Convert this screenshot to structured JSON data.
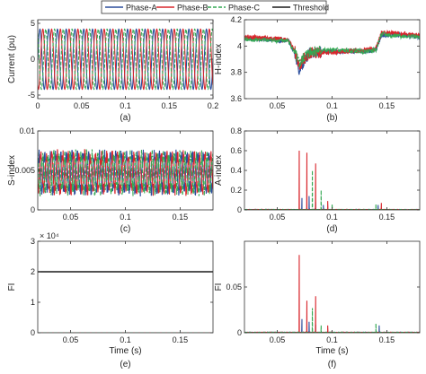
{
  "legend": {
    "entries": [
      {
        "name": "Phase-A",
        "color": "#2b4d9c",
        "dash": false
      },
      {
        "name": "Phase-B",
        "color": "#d9262c",
        "dash": false
      },
      {
        "name": "Phase-C",
        "color": "#34a853",
        "dash": true
      },
      {
        "name": "Threshold",
        "color": "#1a1a1a",
        "dash": false
      }
    ],
    "placement": "top-center"
  },
  "chart_data": [
    {
      "id": "a",
      "type": "line",
      "caption": "(a)",
      "xlabel": "",
      "ylabel": "Current (pu)",
      "xlim": [
        0,
        0.2
      ],
      "ylim": [
        -5.5,
        5.5
      ],
      "xticks": [
        0,
        0.05,
        0.1,
        0.15,
        0.2
      ],
      "xtick_labels": [
        "0",
        "0.05",
        "0.1",
        "0.15",
        "0.2"
      ],
      "yticks": [
        -5,
        0,
        5
      ],
      "ytick_labels": [
        "-5",
        "0",
        "5"
      ],
      "grid": false,
      "exponent": "",
      "series": [
        {
          "phase": "Phase-A",
          "color": "#2b4d9c",
          "dash": false,
          "description": "three-phase sinusoid",
          "amplitude": 4.2,
          "frequency_hz": 100,
          "phase_deg": 0
        },
        {
          "phase": "Phase-B",
          "color": "#d9262c",
          "dash": false,
          "description": "three-phase sinusoid",
          "amplitude": 4.2,
          "frequency_hz": 100,
          "phase_deg": -120
        },
        {
          "phase": "Phase-C",
          "color": "#34a853",
          "dash": true,
          "description": "three-phase sinusoid",
          "amplitude": 4.2,
          "frequency_hz": 100,
          "phase_deg": 120
        }
      ]
    },
    {
      "id": "b",
      "type": "line",
      "caption": "(b)",
      "xlabel": "",
      "ylabel": "H-index",
      "xlim": [
        0.02,
        0.18
      ],
      "ylim": [
        3.6,
        4.2
      ],
      "xticks": [
        0.05,
        0.1,
        0.15
      ],
      "xtick_labels": [
        "0.05",
        "0.1",
        "0.15"
      ],
      "yticks": [
        3.6,
        3.8,
        4.0,
        4.2
      ],
      "ytick_labels": [
        "3.6",
        "3.8",
        "4",
        "4.2"
      ],
      "grid": false,
      "exponent": "",
      "series": [
        {
          "phase": "Phase-A",
          "color": "#2b4d9c",
          "dash": false,
          "x": [
            0.02,
            0.06,
            0.066,
            0.07,
            0.075,
            0.08,
            0.1,
            0.13,
            0.14,
            0.145,
            0.155,
            0.18
          ],
          "y": [
            4.06,
            4.04,
            3.95,
            3.82,
            3.9,
            3.95,
            3.96,
            3.96,
            3.97,
            4.08,
            4.09,
            4.07
          ]
        },
        {
          "phase": "Phase-B",
          "color": "#d9262c",
          "dash": false,
          "x": [
            0.02,
            0.06,
            0.066,
            0.07,
            0.075,
            0.08,
            0.1,
            0.13,
            0.14,
            0.145,
            0.155,
            0.18
          ],
          "y": [
            4.07,
            4.05,
            3.96,
            3.84,
            3.91,
            3.95,
            3.95,
            3.97,
            3.98,
            4.1,
            4.1,
            4.08
          ]
        },
        {
          "phase": "Phase-C",
          "color": "#34a853",
          "dash": true,
          "x": [
            0.02,
            0.06,
            0.066,
            0.07,
            0.075,
            0.08,
            0.1,
            0.13,
            0.14,
            0.145,
            0.155,
            0.18
          ],
          "y": [
            4.05,
            4.04,
            3.95,
            3.86,
            3.92,
            3.96,
            3.97,
            3.96,
            3.97,
            4.09,
            4.08,
            4.07
          ]
        }
      ]
    },
    {
      "id": "c",
      "type": "line",
      "caption": "(c)",
      "xlabel": "",
      "ylabel": "S-index",
      "xlim": [
        0.02,
        0.18
      ],
      "ylim": [
        0,
        0.01
      ],
      "xticks": [
        0.05,
        0.1,
        0.15
      ],
      "xtick_labels": [
        "0.05",
        "0.1",
        "0.15"
      ],
      "yticks": [
        0,
        0.005,
        0.01
      ],
      "ytick_labels": [
        "0",
        "0.005",
        "0.01"
      ],
      "grid": false,
      "exponent": "",
      "series": [
        {
          "phase": "Phase-A",
          "color": "#2b4d9c",
          "dash": false,
          "description": "oscillating index",
          "mean": 0.0047,
          "amplitude": 0.0022,
          "frequency_hz": 200,
          "phase_deg": 0
        },
        {
          "phase": "Phase-B",
          "color": "#d9262c",
          "dash": false,
          "description": "oscillating index",
          "mean": 0.0047,
          "amplitude": 0.0022,
          "frequency_hz": 200,
          "phase_deg": -120
        },
        {
          "phase": "Phase-C",
          "color": "#34a853",
          "dash": true,
          "description": "oscillating index",
          "mean": 0.0047,
          "amplitude": 0.0022,
          "frequency_hz": 200,
          "phase_deg": 120
        }
      ]
    },
    {
      "id": "d",
      "type": "line",
      "caption": "(d)",
      "xlabel": "",
      "ylabel": "A-index",
      "xlim": [
        0.02,
        0.18
      ],
      "ylim": [
        0,
        0.8
      ],
      "xticks": [
        0.05,
        0.1,
        0.15
      ],
      "xtick_labels": [
        "0.05",
        "0.1",
        "0.15"
      ],
      "yticks": [
        0,
        0.2,
        0.4,
        0.6,
        0.8
      ],
      "ytick_labels": [
        "0",
        "0.2",
        "0.4",
        "0.6",
        "0.8"
      ],
      "grid": false,
      "exponent": "",
      "series": [
        {
          "phase": "Phase-A",
          "color": "#2b4d9c",
          "dash": false,
          "spikes": [
            [
              0.0725,
              0.12
            ],
            [
              0.079,
              0.14
            ],
            [
              0.085,
              0.08
            ],
            [
              0.092,
              0.05
            ],
            [
              0.142,
              0.05
            ]
          ]
        },
        {
          "phase": "Phase-B",
          "color": "#d9262c",
          "dash": false,
          "spikes": [
            [
              0.07,
              0.6
            ],
            [
              0.077,
              0.58
            ],
            [
              0.085,
              0.47
            ],
            [
              0.096,
              0.09
            ],
            [
              0.145,
              0.07
            ]
          ]
        },
        {
          "phase": "Phase-C",
          "color": "#34a853",
          "dash": true,
          "spikes": [
            [
              0.082,
              0.4
            ],
            [
              0.09,
              0.2
            ],
            [
              0.1,
              0.06
            ],
            [
              0.14,
              0.06
            ]
          ]
        }
      ]
    },
    {
      "id": "e",
      "type": "line",
      "caption": "(e)",
      "xlabel": "Time (s)",
      "ylabel": "FI",
      "xlim": [
        0.02,
        0.18
      ],
      "ylim": [
        0,
        30000
      ],
      "xticks": [
        0.05,
        0.1,
        0.15
      ],
      "xtick_labels": [
        "0.05",
        "0.1",
        "0.15"
      ],
      "yticks": [
        0,
        10000,
        20000,
        30000
      ],
      "ytick_labels": [
        "0",
        "1",
        "2",
        "3"
      ],
      "grid": false,
      "exponent": "× 10⁴",
      "series": [
        {
          "phase": "Threshold",
          "color": "#1a1a1a",
          "dash": false,
          "x": [
            0.02,
            0.18
          ],
          "y": [
            20000,
            20000
          ]
        },
        {
          "phase": "Phase-A",
          "color": "#2b4d9c",
          "dash": false,
          "x": [
            0.02,
            0.18
          ],
          "y": [
            0,
            0
          ]
        },
        {
          "phase": "Phase-B",
          "color": "#d9262c",
          "dash": false,
          "x": [
            0.02,
            0.18
          ],
          "y": [
            0,
            0
          ]
        },
        {
          "phase": "Phase-C",
          "color": "#34a853",
          "dash": true,
          "x": [
            0.02,
            0.18
          ],
          "y": [
            0,
            0
          ]
        }
      ]
    },
    {
      "id": "f",
      "type": "line",
      "caption": "(f)",
      "xlabel": "Time (s)",
      "ylabel": "FI",
      "xlim": [
        0.02,
        0.18
      ],
      "ylim": [
        0,
        0.1
      ],
      "xticks": [
        0.05,
        0.1,
        0.15
      ],
      "xtick_labels": [
        "0.05",
        "0.1",
        "0.15"
      ],
      "yticks": [
        0,
        0.05
      ],
      "ytick_labels": [
        "0",
        "0.05"
      ],
      "grid": false,
      "exponent": "",
      "series": [
        {
          "phase": "Phase-A",
          "color": "#2b4d9c",
          "dash": false,
          "spikes": [
            [
              0.0725,
              0.015
            ],
            [
              0.079,
              0.012
            ],
            [
              0.085,
              0.009
            ],
            [
              0.143,
              0.008
            ]
          ]
        },
        {
          "phase": "Phase-B",
          "color": "#d9262c",
          "dash": false,
          "spikes": [
            [
              0.07,
              0.085
            ],
            [
              0.077,
              0.035
            ],
            [
              0.085,
              0.04
            ],
            [
              0.096,
              0.008
            ]
          ]
        },
        {
          "phase": "Phase-C",
          "color": "#34a853",
          "dash": true,
          "spikes": [
            [
              0.082,
              0.027
            ],
            [
              0.09,
              0.008
            ],
            [
              0.14,
              0.01
            ]
          ]
        }
      ]
    }
  ]
}
